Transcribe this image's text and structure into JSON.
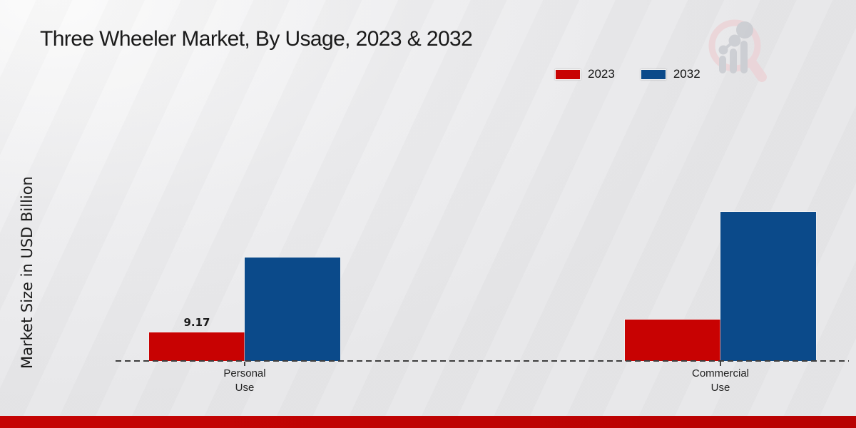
{
  "title": "Three Wheeler Market, By Usage, 2023 & 2032",
  "colors": {
    "series_2023": "#c80202",
    "series_2032": "#0b4a8a",
    "footer_bar": "#c00303",
    "background": "#e9e9ea",
    "baseline": "#3d3d3d"
  },
  "footer": {},
  "watermark": {
    "name": "market-research-magnifier-logo"
  },
  "chart_data": {
    "type": "bar",
    "title": "Three Wheeler Market, By Usage, 2023 & 2032",
    "xlabel": "",
    "ylabel": "Market Size in USD Billion",
    "categories": [
      "Personal Use",
      "Commercial Use"
    ],
    "series": [
      {
        "name": "2023",
        "color": "#c80202",
        "values": [
          9.17,
          13.3
        ]
      },
      {
        "name": "2032",
        "color": "#0b4a8a",
        "values": [
          33.2,
          47.9
        ]
      }
    ],
    "data_labels": [
      {
        "series_index": 0,
        "category_index": 0,
        "text": "9.17"
      }
    ],
    "ylim": [
      0,
      50
    ],
    "grid": false,
    "legend_position": "top-right",
    "baseline_style": "dashed",
    "axis_note": "only the 2023 Personal Use bar carries a printed value label"
  }
}
